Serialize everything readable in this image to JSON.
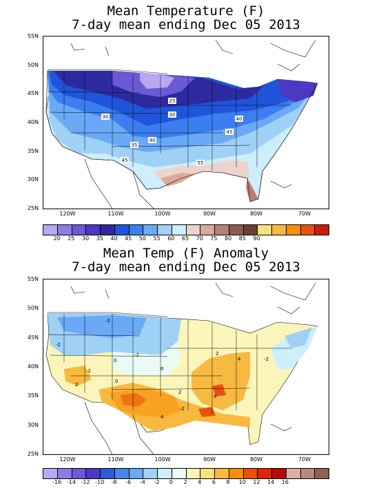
{
  "map1": {
    "title_line1": "Mean Temperature (F)",
    "title_line2": "7-day mean ending Dec 05 2013",
    "lat_labels": [
      "55N",
      "50N",
      "45N",
      "40N",
      "35N",
      "30N",
      "25N"
    ],
    "lon_labels": [
      "120W",
      "110W",
      "100W",
      "90W",
      "80W",
      "70W"
    ],
    "contour_labels": [
      "25",
      "30",
      "30",
      "35",
      "40",
      "40",
      "45",
      "45",
      "55"
    ],
    "colorbar": {
      "colors": [
        "#b9a7f2",
        "#8b7de8",
        "#6a5ad6",
        "#4b39c2",
        "#2d2aa0",
        "#1f55d8",
        "#3b7ef0",
        "#6aa9f5",
        "#9fd1f7",
        "#cdeefc",
        "#ecd3cb",
        "#d8a99c",
        "#b97f73",
        "#8e5a50",
        "#6b4036",
        "#f9e27c",
        "#f8b940",
        "#f88f0c",
        "#e6520c",
        "#c81e0e"
      ],
      "labels": [
        "20",
        "25",
        "30",
        "35",
        "40",
        "45",
        "50",
        "55",
        "60",
        "65",
        "70",
        "75",
        "80",
        "85",
        "90"
      ]
    }
  },
  "map2": {
    "title_line1": "Mean Temp (F) Anomaly",
    "title_line2": "7-day mean ending Dec 05 2013",
    "lat_labels": [
      "55N",
      "50N",
      "45N",
      "40N",
      "35N",
      "30N",
      "25N"
    ],
    "lon_labels": [
      "120W",
      "110W",
      "100W",
      "90W",
      "80W",
      "70W"
    ],
    "contour_labels": [
      "-2",
      "-2",
      "-2",
      "-2",
      "-2",
      "-2",
      "0",
      "0",
      "0",
      "2",
      "2",
      "2",
      "4",
      "4",
      "4"
    ],
    "colorbar": {
      "colors": [
        "#b9a7f2",
        "#8b7de8",
        "#6a5ad6",
        "#4b39c2",
        "#3059d6",
        "#4a86ea",
        "#6aa9f5",
        "#9fd1f7",
        "#cdeefc",
        "#eafaf5",
        "#fbf5b9",
        "#f9e27c",
        "#f8b940",
        "#f88f0c",
        "#e6520c",
        "#e0240c",
        "#b20d0d",
        "#d9b0a4",
        "#b8897d",
        "#8e6155"
      ],
      "labels": [
        "-16",
        "-14",
        "-12",
        "-10",
        "-8",
        "-6",
        "-4",
        "-2",
        "0",
        "2",
        "4",
        "6",
        "8",
        "10",
        "12",
        "14",
        "16"
      ]
    }
  }
}
